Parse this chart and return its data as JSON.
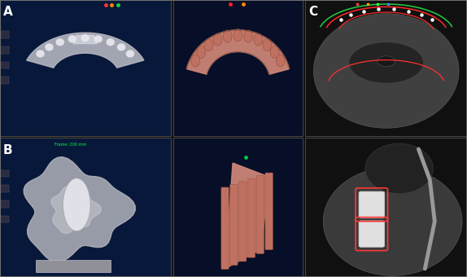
{
  "figsize": [
    5.74,
    3.4
  ],
  "dpi": 100,
  "label_A": "A",
  "label_B": "B",
  "label_C": "C",
  "label_color": "white",
  "label_fontsize": 11,
  "label_fontweight": "bold"
}
